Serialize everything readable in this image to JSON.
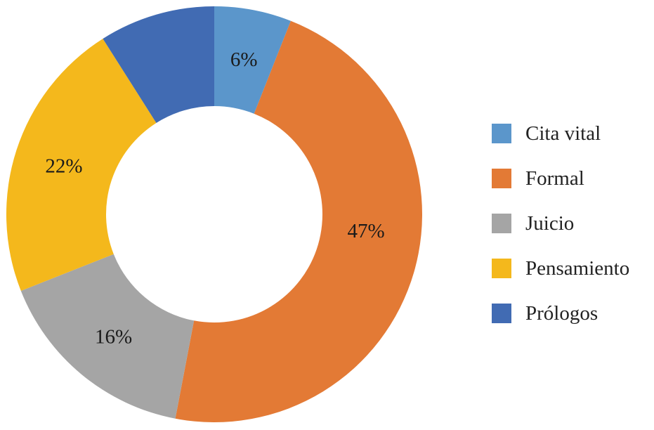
{
  "chart_data": {
    "type": "pie",
    "donut": true,
    "start_angle": "top, clockwise",
    "categories": [
      "Cita vital",
      "Formal",
      "Juicio",
      "Pensamiento",
      "Prólogos"
    ],
    "values": [
      6,
      47,
      16,
      22,
      9
    ],
    "data_labels": [
      "6%",
      "47%",
      "16%",
      "22%",
      ""
    ],
    "colors": [
      "#5B96CB",
      "#E37A35",
      "#A5A5A5",
      "#F4B81C",
      "#416BB3"
    ],
    "legend_position": "right"
  }
}
